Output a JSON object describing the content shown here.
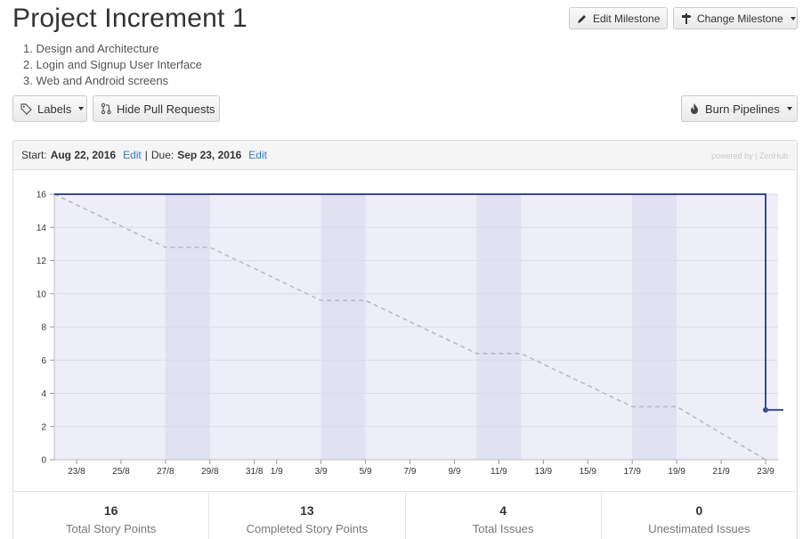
{
  "milestone": {
    "title": "Project Increment 1",
    "goals": [
      "1. Design and Architecture",
      "2. Login and Signup User Interface",
      "3. Web and Android screens"
    ]
  },
  "toolbar": {
    "edit_milestone": "Edit Milestone",
    "change_milestone": "Change Milestone",
    "labels": "Labels",
    "hide_pull_requests": "Hide Pull Requests",
    "burn_pipelines": "Burn Pipelines"
  },
  "panel": {
    "start_label": "Start:",
    "start_date": "Aug 22, 2016",
    "edit": "Edit",
    "due_label": "Due:",
    "due_date": "Sep 23, 2016",
    "powered_by": "powered by | ZenHub"
  },
  "stats": [
    {
      "value": "16",
      "label": "Total Story Points"
    },
    {
      "value": "13",
      "label": "Completed Story Points"
    },
    {
      "value": "4",
      "label": "Total Issues"
    },
    {
      "value": "0",
      "label": "Unestimated Issues"
    }
  ],
  "colors": {
    "plot_bg": "#eeeef8",
    "weekend": "#e0e1f1",
    "remaining_line": "#3c4a8e",
    "ideal_line": "#b9b9c9"
  },
  "chart_data": {
    "type": "line",
    "x_start": "22/8",
    "x_end": "23/9",
    "ylim": [
      0,
      16
    ],
    "yticks": [
      0,
      2,
      4,
      6,
      8,
      10,
      12,
      14,
      16
    ],
    "xticks": [
      "23/8",
      "25/8",
      "27/8",
      "29/8",
      "31/8",
      "1/9",
      "3/9",
      "5/9",
      "7/9",
      "9/9",
      "11/9",
      "13/9",
      "15/9",
      "17/9",
      "19/9",
      "21/9",
      "23/9"
    ],
    "weekends": [
      [
        "27/8",
        "29/8"
      ],
      [
        "3/9",
        "5/9"
      ],
      [
        "10/9",
        "12/9"
      ],
      [
        "17/9",
        "19/9"
      ]
    ],
    "series": [
      {
        "role": "remaining",
        "points": [
          [
            "22/8",
            16
          ],
          [
            "23/9",
            16
          ],
          [
            "23/9",
            3
          ],
          [
            "23/9+",
            3
          ]
        ],
        "marker": [
          "23/9",
          3
        ]
      },
      {
        "role": "ideal",
        "points": [
          [
            "22/8",
            16
          ],
          [
            "27/8",
            12.8
          ],
          [
            "29/8",
            12.8
          ],
          [
            "3/9",
            9.6
          ],
          [
            "5/9",
            9.6
          ],
          [
            "10/9",
            6.4
          ],
          [
            "12/9",
            6.4
          ],
          [
            "17/9",
            3.2
          ],
          [
            "19/9",
            3.2
          ],
          [
            "23/9",
            0
          ]
        ]
      }
    ]
  }
}
